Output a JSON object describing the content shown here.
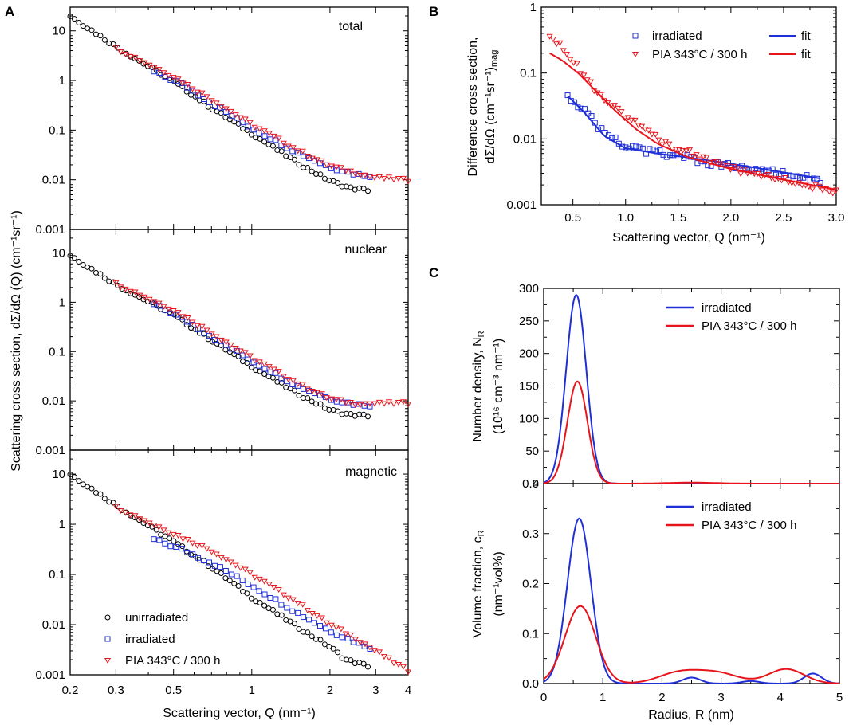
{
  "figure": {
    "panel_labels": [
      "A",
      "B",
      "C"
    ],
    "colors": {
      "unirradiated": "#000000",
      "irradiated": "#1f2fd6",
      "pia": "#e8141b"
    }
  },
  "chart_data": [
    {
      "id": "A",
      "type": "scatter",
      "title": "",
      "xlabel": "Scattering vector, Q (nm⁻¹)",
      "ylabel": "Scattering cross section, dΣ/dΩ (Q) (cm⁻¹sr⁻¹)",
      "xscale": "log",
      "yscale": "log",
      "xlim": [
        0.2,
        4
      ],
      "x_ticks": [
        "0.2",
        "0.3",
        "0.5",
        "1",
        "2",
        "3",
        "4"
      ],
      "y_ticks": [
        "0.001",
        "0.01",
        "0.1",
        "1",
        "10"
      ],
      "legend": [
        "unirradiated",
        "irradiated",
        "PIA 343°C / 300 h"
      ],
      "subplots": [
        {
          "name": "total",
          "ylim": [
            0.001,
            30
          ],
          "series": [
            {
              "name": "unirradiated",
              "marker": "circle",
              "points": [
                [
                  0.2,
                  20
                ],
                [
                  0.3,
                  4.8
                ],
                [
                  0.5,
                  0.95
                ],
                [
                  0.7,
                  0.28
                ],
                [
                  1,
                  0.085
                ],
                [
                  1.5,
                  0.022
                ],
                [
                  2,
                  0.0095
                ],
                [
                  2.4,
                  0.0068
                ],
                [
                  2.8,
                  0.0062
                ]
              ]
            },
            {
              "name": "irradiated",
              "marker": "square",
              "points": [
                [
                  0.42,
                  1.5
                ],
                [
                  0.55,
                  0.8
                ],
                [
                  0.7,
                  0.35
                ],
                [
                  1,
                  0.11
                ],
                [
                  1.5,
                  0.035
                ],
                [
                  2,
                  0.018
                ],
                [
                  2.5,
                  0.013
                ],
                [
                  2.85,
                  0.012
                ]
              ]
            },
            {
              "name": "PIA 343°C / 300 h",
              "marker": "triangle",
              "points": [
                [
                  0.3,
                  4.5
                ],
                [
                  0.5,
                  1.2
                ],
                [
                  0.7,
                  0.42
                ],
                [
                  1,
                  0.13
                ],
                [
                  1.5,
                  0.04
                ],
                [
                  2,
                  0.019
                ],
                [
                  2.5,
                  0.014
                ],
                [
                  3,
                  0.011
                ],
                [
                  3.5,
                  0.0105
                ],
                [
                  4,
                  0.0098
                ]
              ]
            }
          ]
        },
        {
          "name": "nuclear",
          "ylim": [
            0.001,
            30
          ],
          "series": [
            {
              "name": "unirradiated",
              "marker": "circle",
              "points": [
                [
                  0.2,
                  9
                ],
                [
                  0.3,
                  2.3
                ],
                [
                  0.5,
                  0.55
                ],
                [
                  0.7,
                  0.17
                ],
                [
                  1,
                  0.05
                ],
                [
                  1.5,
                  0.014
                ],
                [
                  2,
                  0.0065
                ],
                [
                  2.4,
                  0.0052
                ],
                [
                  2.8,
                  0.005
                ]
              ]
            },
            {
              "name": "irradiated",
              "marker": "square",
              "points": [
                [
                  0.42,
                  0.9
                ],
                [
                  0.55,
                  0.45
                ],
                [
                  0.7,
                  0.2
                ],
                [
                  1,
                  0.065
                ],
                [
                  1.5,
                  0.02
                ],
                [
                  2,
                  0.011
                ],
                [
                  2.5,
                  0.0085
                ],
                [
                  2.85,
                  0.0082
                ]
              ]
            },
            {
              "name": "PIA 343°C / 300 h",
              "marker": "triangle",
              "points": [
                [
                  0.3,
                  2.4
                ],
                [
                  0.5,
                  0.7
                ],
                [
                  0.7,
                  0.24
                ],
                [
                  1,
                  0.075
                ],
                [
                  1.5,
                  0.023
                ],
                [
                  2,
                  0.011
                ],
                [
                  2.5,
                  0.0088
                ],
                [
                  3,
                  0.0088
                ],
                [
                  3.5,
                  0.009
                ],
                [
                  4,
                  0.009
                ]
              ]
            }
          ]
        },
        {
          "name": "magnetic",
          "ylim": [
            0.001,
            30
          ],
          "series": [
            {
              "name": "unirradiated",
              "marker": "circle",
              "points": [
                [
                  0.2,
                  10
                ],
                [
                  0.3,
                  2.4
                ],
                [
                  0.5,
                  0.45
                ],
                [
                  0.7,
                  0.14
                ],
                [
                  1,
                  0.035
                ],
                [
                  1.5,
                  0.009
                ],
                [
                  2,
                  0.0036
                ],
                [
                  2.3,
                  0.002
                ],
                [
                  2.8,
                  0.0015
                ]
              ]
            },
            {
              "name": "irradiated",
              "marker": "square",
              "points": [
                [
                  0.42,
                  0.5
                ],
                [
                  0.55,
                  0.3
                ],
                [
                  0.7,
                  0.17
                ],
                [
                  1,
                  0.06
                ],
                [
                  1.5,
                  0.017
                ],
                [
                  2,
                  0.0075
                ],
                [
                  2.5,
                  0.0045
                ],
                [
                  2.85,
                  0.0035
                ]
              ]
            },
            {
              "name": "PIA 343°C / 300 h",
              "marker": "triangle",
              "points": [
                [
                  0.3,
                  2.2
                ],
                [
                  0.5,
                  0.65
                ],
                [
                  0.7,
                  0.3
                ],
                [
                  1,
                  0.1
                ],
                [
                  1.5,
                  0.028
                ],
                [
                  2,
                  0.01
                ],
                [
                  2.5,
                  0.0055
                ],
                [
                  3,
                  0.003
                ],
                [
                  3.5,
                  0.0018
                ],
                [
                  4,
                  0.0012
                ]
              ]
            }
          ]
        }
      ]
    },
    {
      "id": "B",
      "type": "scatter",
      "xlabel": "Scattering vector, Q (nm⁻¹)",
      "ylabel_line1": "Difference cross section,",
      "ylabel_line2": "dΣ/dΩ (cm⁻¹sr⁻¹)",
      "ylabel_sub": "mag",
      "xscale": "linear",
      "yscale": "log",
      "xlim": [
        0.2,
        3.0
      ],
      "ylim": [
        0.001,
        1.0
      ],
      "x_ticks": [
        "0.5",
        "1.0",
        "1.5",
        "2.0",
        "2.5",
        "3.0"
      ],
      "y_ticks": [
        "0.001",
        "0.01",
        "0.1",
        "1"
      ],
      "legend": [
        "irradiated",
        "fit",
        "PIA 343°C / 300 h",
        "fit"
      ],
      "series": [
        {
          "name": "irradiated",
          "marker": "square",
          "points": [
            [
              0.45,
              0.045
            ],
            [
              0.6,
              0.028
            ],
            [
              0.8,
              0.012
            ],
            [
              1,
              0.0078
            ],
            [
              1.2,
              0.0065
            ],
            [
              1.5,
              0.0055
            ],
            [
              1.8,
              0.0042
            ],
            [
              2,
              0.0038
            ],
            [
              2.3,
              0.0033
            ],
            [
              2.6,
              0.0028
            ],
            [
              2.85,
              0.0024
            ]
          ]
        },
        {
          "name": "fit (irradiated)",
          "line": true,
          "points": [
            [
              0.45,
              0.045
            ],
            [
              0.6,
              0.026
            ],
            [
              0.8,
              0.011
            ],
            [
              1,
              0.0072
            ],
            [
              1.3,
              0.006
            ],
            [
              1.6,
              0.0052
            ],
            [
              2,
              0.0042
            ],
            [
              2.5,
              0.0031
            ],
            [
              2.85,
              0.0025
            ]
          ]
        },
        {
          "name": "PIA 343°C / 300 h",
          "marker": "triangle",
          "points": [
            [
              0.28,
              0.37
            ],
            [
              0.4,
              0.25
            ],
            [
              0.55,
              0.12
            ],
            [
              0.7,
              0.06
            ],
            [
              0.9,
              0.03
            ],
            [
              1.1,
              0.017
            ],
            [
              1.3,
              0.01
            ],
            [
              1.5,
              0.007
            ],
            [
              1.8,
              0.0048
            ],
            [
              2,
              0.0035
            ],
            [
              2.3,
              0.0028
            ],
            [
              2.6,
              0.0022
            ],
            [
              2.9,
              0.0017
            ],
            [
              3.0,
              0.0015
            ]
          ]
        },
        {
          "name": "fit (PIA)",
          "line": true,
          "points": [
            [
              0.28,
              0.2
            ],
            [
              0.4,
              0.155
            ],
            [
              0.55,
              0.1
            ],
            [
              0.7,
              0.057
            ],
            [
              0.9,
              0.027
            ],
            [
              1.1,
              0.014
            ],
            [
              1.3,
              0.0085
            ],
            [
              1.6,
              0.0052
            ],
            [
              2,
              0.0035
            ],
            [
              2.5,
              0.0024
            ],
            [
              3.0,
              0.0017
            ]
          ]
        }
      ]
    },
    {
      "id": "C_top",
      "type": "line",
      "xlabel": "",
      "ylabel_line1": "Number density, N",
      "ylabel_line1_sub": "R",
      "ylabel_line2": "(10¹⁶ cm⁻³ nm⁻¹)",
      "xlim": [
        0,
        5
      ],
      "ylim": [
        0,
        300
      ],
      "y_ticks": [
        "0",
        "50",
        "100",
        "150",
        "200",
        "250",
        "300"
      ],
      "legend": [
        "irradiated",
        "PIA 343°C / 300 h"
      ],
      "series": [
        {
          "name": "irradiated",
          "peaks": [
            {
              "center": 0.55,
              "height": 290,
              "width": 0.17
            }
          ]
        },
        {
          "name": "PIA 343°C / 300 h",
          "peaks": [
            {
              "center": 0.57,
              "height": 157,
              "width": 0.17
            },
            {
              "center": 2.5,
              "height": 1.5,
              "width": 0.4
            }
          ]
        }
      ]
    },
    {
      "id": "C_bottom",
      "type": "line",
      "xlabel": "Radius, R (nm)",
      "ylabel_line1": "Volume fraction, c",
      "ylabel_line1_sub": "R",
      "ylabel_line2": "(nm⁻¹vol%)",
      "xlim": [
        0,
        5
      ],
      "ylim": [
        0,
        0.4
      ],
      "x_ticks": [
        "0",
        "1",
        "2",
        "3",
        "4",
        "5"
      ],
      "y_ticks": [
        "0.0",
        "0.1",
        "0.2",
        "0.3",
        "0.4"
      ],
      "legend": [
        "irradiated",
        "PIA 343°C / 300 h"
      ],
      "series": [
        {
          "name": "irradiated",
          "peaks": [
            {
              "center": 0.6,
              "height": 0.33,
              "width": 0.2
            },
            {
              "center": 2.5,
              "height": 0.012,
              "width": 0.15
            },
            {
              "center": 3.5,
              "height": 0.005,
              "width": 0.15
            },
            {
              "center": 4.55,
              "height": 0.02,
              "width": 0.15
            }
          ]
        },
        {
          "name": "PIA 343°C / 300 h",
          "peaks": [
            {
              "center": 0.62,
              "height": 0.155,
              "width": 0.26
            },
            {
              "center": 2.3,
              "height": 0.022,
              "width": 0.35
            },
            {
              "center": 2.95,
              "height": 0.02,
              "width": 0.35
            },
            {
              "center": 4.1,
              "height": 0.029,
              "width": 0.3
            }
          ]
        }
      ]
    }
  ]
}
